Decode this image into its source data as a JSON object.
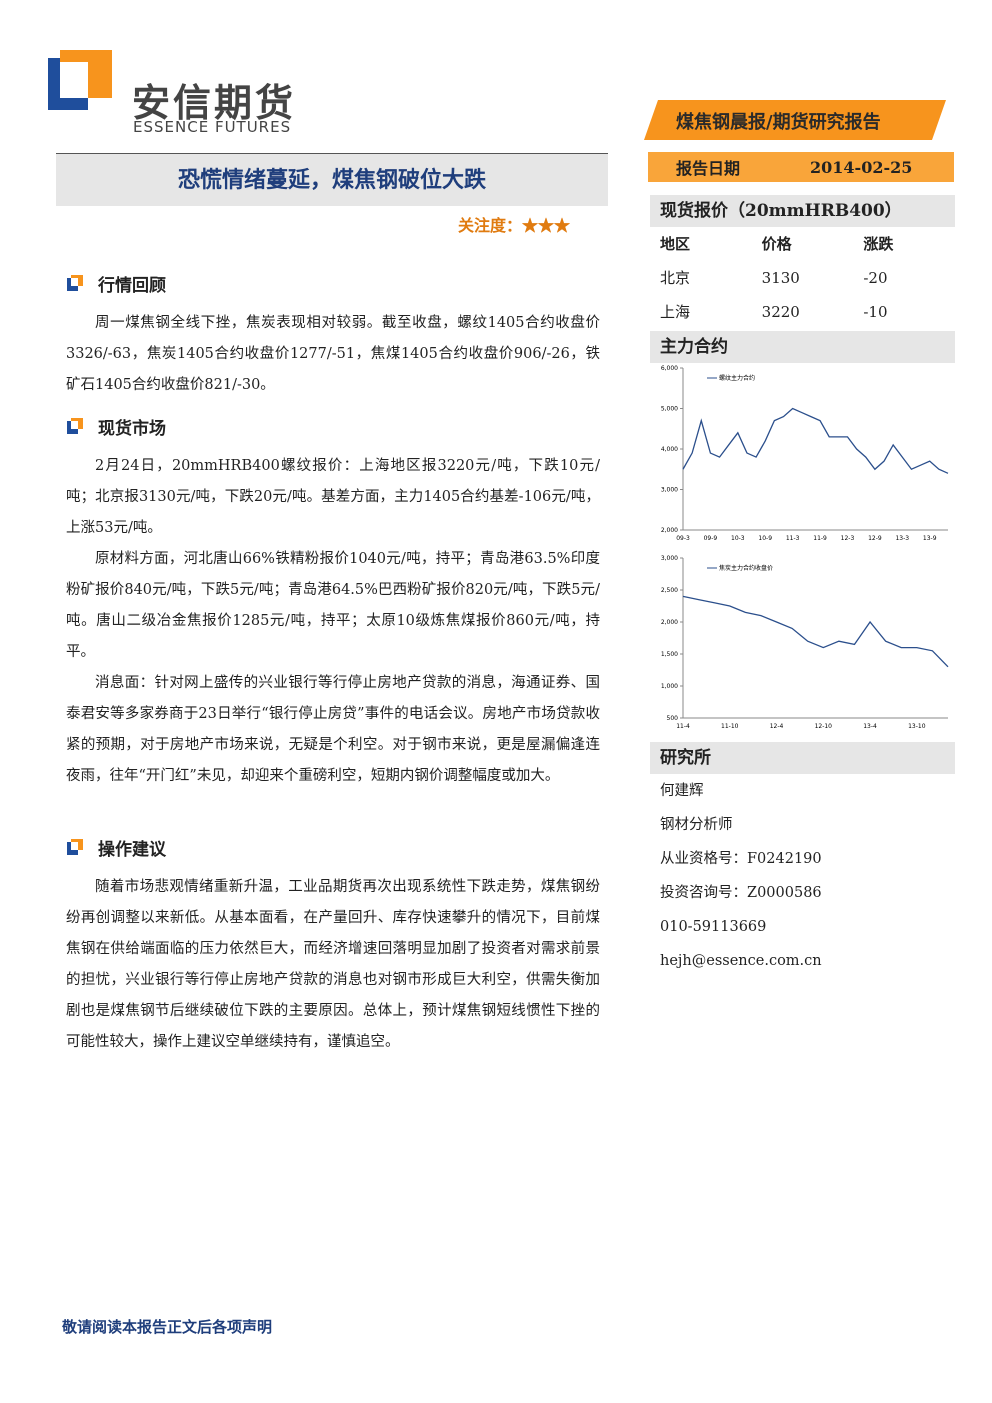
{
  "header": {
    "logo_cn": "安信期货",
    "logo_en": "ESSENCE FUTURES",
    "banner": "煤焦钢晨报/期货研究报告",
    "date_label": "报告日期",
    "date": "2014-02-25",
    "title": "恐慌情绪蔓延，煤焦钢破位大跌",
    "attention": "关注度：★★★"
  },
  "sections": [
    {
      "heading": "行情回顾",
      "paragraphs": [
        "周一煤焦钢全线下挫，焦炭表现相对较弱。截至收盘，螺纹1405合约收盘价3326/-63，焦炭1405合约收盘价1277/-51，焦煤1405合约收盘价906/-26，铁矿石1405合约收盘价821/-30。"
      ]
    },
    {
      "heading": "现货市场",
      "paragraphs": [
        "2月24日，20mmHRB400螺纹报价：上海地区报3220元/吨，下跌10元/吨；北京报3130元/吨，下跌20元/吨。基差方面，主力1405合约基差-106元/吨，上涨53元/吨。",
        "原材料方面，河北唐山66%铁精粉报价1040元/吨，持平；青岛港63.5%印度粉矿报价840元/吨，下跌5元/吨；青岛港64.5%巴西粉矿报价820元/吨，下跌5元/吨。唐山二级冶金焦报价1285元/吨，持平；太原10级炼焦煤报价860元/吨，持平。",
        "消息面：针对网上盛传的兴业银行等行停止房地产贷款的消息，海通证券、国泰君安等多家券商于23日举行“银行停止房贷”事件的电话会议。房地产市场贷款收紧的预期，对于房地产市场来说，无疑是个利空。对于钢市来说，更是屋漏偏逢连夜雨，往年“开门红”未见，却迎来个重磅利空，短期内钢价调整幅度或加大。"
      ]
    },
    {
      "heading": "操作建议",
      "paragraphs": [
        "随着市场悲观情绪重新升温，工业品期货再次出现系统性下跌走势，煤焦钢纷纷再创调整以来新低。从基本面看，在产量回升、库存快速攀升的情况下，目前煤焦钢在供给端面临的压力依然巨大，而经济增速回落明显加剧了投资者对需求前景的担忧，兴业银行等行停止房地产贷款的消息也对钢市形成巨大利空，供需失衡加剧也是煤焦钢节后继续破位下跌的主要原因。总体上，预计煤焦钢短线惯性下挫的可能性较大，操作上建议空单继续持有，谨慎追空。"
      ]
    }
  ],
  "sidebar": {
    "spot_title": "现货报价（20mmHRB400）",
    "table": {
      "headers": [
        "地区",
        "价格",
        "涨跌"
      ],
      "rows": [
        [
          "北京",
          "3130",
          "-20"
        ],
        [
          "上海",
          "3220",
          "-10"
        ]
      ]
    },
    "contract_title": "主力合约",
    "research_title": "研究所",
    "research_lines": [
      "何建辉",
      "钢材分析师",
      "从业资格号：F0242190",
      "投资咨询号：Z0000586",
      "010-59113669",
      "hejh@essence.com.cn"
    ]
  },
  "chart_data": [
    {
      "type": "line",
      "categories": [
        "09-3",
        null,
        null,
        "09-9",
        null,
        null,
        "10-3",
        null,
        null,
        "10-9",
        null,
        null,
        "11-3",
        null,
        null,
        "11-9",
        null,
        null,
        "12-3",
        null,
        null,
        "12-9",
        null,
        null,
        "13-3",
        null,
        null,
        "13-9",
        null,
        null
      ],
      "series": [
        {
          "name": "螺纹主力合约",
          "color": "#2b4f8c",
          "values": [
            3500,
            3900,
            4700,
            3900,
            3800,
            4100,
            4400,
            3900,
            3800,
            4200,
            4700,
            4800,
            5000,
            4900,
            4800,
            4700,
            4300,
            4300,
            4300,
            4000,
            3800,
            3500,
            3700,
            4100,
            3800,
            3500,
            3600,
            3700,
            3500,
            3400
          ]
        }
      ],
      "ylim": [
        2000,
        6000
      ],
      "yticks": [
        {
          "value": 2000,
          "label": "2,000"
        },
        {
          "value": 3000,
          "label": "3,000"
        },
        {
          "value": 4000,
          "label": "4,000"
        },
        {
          "value": 5000,
          "label": "5,000"
        },
        {
          "value": 6000,
          "label": "6,000"
        }
      ]
    },
    {
      "type": "line",
      "categories": [
        "11-4",
        null,
        null,
        "11-10",
        null,
        null,
        "12-4",
        null,
        null,
        "12-10",
        null,
        null,
        "13-4",
        null,
        null,
        "13-10",
        null,
        null
      ],
      "series": [
        {
          "name": "焦炭主力合约收盘价",
          "color": "#2b4f8c",
          "values": [
            2400,
            2350,
            2300,
            2250,
            2150,
            2100,
            2000,
            1900,
            1700,
            1600,
            1700,
            1650,
            2000,
            1700,
            1600,
            1600,
            1550,
            1300
          ]
        }
      ],
      "ylim": [
        500,
        3000
      ],
      "yticks": [
        500,
        {
          "value": 1000,
          "label": "1,000"
        },
        {
          "value": 1500,
          "label": "1,500"
        },
        {
          "value": 2000,
          "label": "2,000"
        },
        {
          "value": 2500,
          "label": "2,500"
        },
        {
          "value": 3000,
          "label": "3,000"
        }
      ]
    }
  ],
  "footer": "敬请阅读本报告正文后各项声明"
}
